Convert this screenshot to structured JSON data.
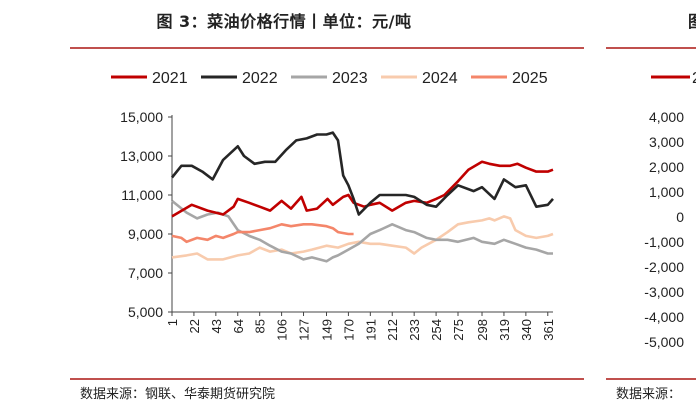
{
  "left_title": "图 3：菜油价格行情丨单位：元/吨",
  "right_title_fragment": "图",
  "left_source": "数据来源：钢联、华泰期货研究院",
  "right_source": "数据来源：",
  "colors": {
    "rule": "#c0504d",
    "2021": "#c00000",
    "2022": "#262626",
    "2023": "#a6a6a6",
    "2024": "#f8cbad",
    "2025": "#f4866a"
  },
  "chart_data": [
    {
      "type": "line",
      "title": "菜油价格行情",
      "xlabel": "",
      "ylabel": "元/吨",
      "ylim": [
        5000,
        15000
      ],
      "yticks": [
        "15,000",
        "13,000",
        "11,000",
        "9,000",
        "7,000",
        "5,000"
      ],
      "ytick_values": [
        15000,
        13000,
        11000,
        9000,
        7000,
        5000
      ],
      "xticks": [
        "1",
        "22",
        "43",
        "64",
        "85",
        "106",
        "127",
        "149",
        "170",
        "191",
        "212",
        "233",
        "254",
        "275",
        "298",
        "319",
        "340",
        "361"
      ],
      "xtick_values": [
        1,
        22,
        43,
        64,
        85,
        106,
        127,
        149,
        170,
        191,
        212,
        233,
        254,
        275,
        298,
        319,
        340,
        361
      ],
      "xlim": [
        1,
        366
      ],
      "series": [
        {
          "name": "2021",
          "x": [
            1,
            20,
            35,
            50,
            60,
            64,
            75,
            85,
            95,
            106,
            115,
            125,
            130,
            140,
            150,
            155,
            165,
            170,
            175,
            185,
            191,
            200,
            212,
            225,
            233,
            245,
            254,
            262,
            275,
            285,
            298,
            305,
            315,
            325,
            332,
            340,
            350,
            361,
            366
          ],
          "y": [
            9900,
            10500,
            10200,
            10000,
            10400,
            10800,
            10600,
            10400,
            10200,
            10700,
            10300,
            10900,
            10200,
            10300,
            10800,
            10500,
            10900,
            11000,
            10600,
            10400,
            10500,
            10600,
            10200,
            10600,
            10700,
            10600,
            10800,
            11000,
            11700,
            12300,
            12700,
            12600,
            12500,
            12500,
            12600,
            12400,
            12200,
            12200,
            12300
          ]
        },
        {
          "name": "2022",
          "x": [
            1,
            10,
            20,
            30,
            40,
            50,
            64,
            70,
            80,
            90,
            100,
            110,
            120,
            130,
            140,
            149,
            155,
            160,
            165,
            170,
            175,
            180,
            191,
            200,
            212,
            225,
            233,
            245,
            254,
            265,
            275,
            290,
            298,
            310,
            319,
            330,
            340,
            350,
            361,
            366
          ],
          "y": [
            11900,
            12500,
            12500,
            12200,
            11800,
            12800,
            13500,
            13000,
            12600,
            12700,
            12700,
            13300,
            13800,
            13900,
            14100,
            14100,
            14200,
            13800,
            12000,
            11500,
            10800,
            10000,
            10600,
            11000,
            11000,
            11000,
            10900,
            10500,
            10400,
            11000,
            11500,
            11200,
            11400,
            10800,
            11800,
            11400,
            11500,
            10400,
            10500,
            10800
          ]
        },
        {
          "name": "2023",
          "x": [
            1,
            15,
            25,
            35,
            45,
            55,
            64,
            75,
            85,
            95,
            106,
            115,
            127,
            135,
            149,
            155,
            160,
            170,
            180,
            191,
            200,
            212,
            225,
            233,
            245,
            254,
            265,
            275,
            290,
            298,
            310,
            319,
            330,
            340,
            350,
            361,
            366
          ],
          "y": [
            10700,
            10100,
            9800,
            10000,
            10100,
            9900,
            9200,
            8900,
            8700,
            8400,
            8100,
            8000,
            7700,
            7800,
            7600,
            7800,
            7900,
            8200,
            8500,
            9000,
            9200,
            9500,
            9200,
            9100,
            8800,
            8700,
            8700,
            8600,
            8800,
            8600,
            8500,
            8700,
            8500,
            8300,
            8200,
            8000,
            8000
          ]
        },
        {
          "name": "2024",
          "x": [
            1,
            15,
            25,
            35,
            50,
            64,
            75,
            85,
            95,
            106,
            115,
            127,
            135,
            149,
            160,
            170,
            180,
            191,
            200,
            212,
            225,
            233,
            240,
            254,
            265,
            275,
            285,
            298,
            305,
            310,
            319,
            325,
            330,
            340,
            350,
            361,
            366
          ],
          "y": [
            7800,
            7900,
            8000,
            7700,
            7700,
            7900,
            8000,
            8300,
            8100,
            8200,
            8000,
            8100,
            8200,
            8400,
            8300,
            8500,
            8600,
            8500,
            8500,
            8400,
            8300,
            8000,
            8300,
            8700,
            9100,
            9500,
            9600,
            9700,
            9800,
            9700,
            9900,
            9800,
            9200,
            8900,
            8800,
            8900,
            9000
          ]
        },
        {
          "name": "2025",
          "x": [
            1,
            10,
            15,
            25,
            35,
            43,
            50,
            60,
            64,
            75,
            85,
            95,
            106,
            115,
            127,
            135,
            149,
            155,
            160,
            170,
            175
          ],
          "y": [
            8900,
            8800,
            8600,
            8800,
            8700,
            8900,
            8800,
            9000,
            9100,
            9100,
            9200,
            9300,
            9500,
            9400,
            9500,
            9500,
            9400,
            9300,
            9100,
            9000,
            9000
          ]
        }
      ]
    },
    {
      "type": "line",
      "title": "",
      "partial": true,
      "legend_visible": [
        "2"
      ],
      "yticks": [
        "4,000",
        "3,000",
        "2,000",
        "1,000",
        "0",
        "-1,000",
        "-2,000",
        "-3,000",
        "-4,000",
        "-5,000"
      ],
      "ytick_values": [
        4000,
        3000,
        2000,
        1000,
        0,
        -1000,
        -2000,
        -3000,
        -4000,
        -5000
      ]
    }
  ]
}
